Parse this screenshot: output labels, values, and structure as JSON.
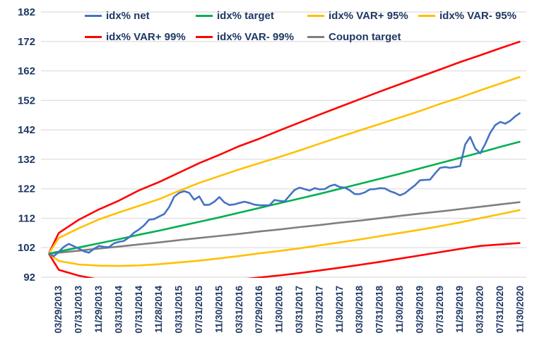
{
  "chart_data": {
    "type": "line",
    "title": "",
    "xlabel": "",
    "ylabel": "",
    "ylim": [
      92,
      182
    ],
    "y_ticks": [
      182,
      172,
      162,
      152,
      142,
      132,
      122,
      112,
      102,
      92
    ],
    "grid": true,
    "legend_position": "top",
    "x_labels": [
      "03/29/2013",
      "07/31/2013",
      "11/29/2013",
      "03/31/2014",
      "07/31/2014",
      "11/28/2014",
      "03/31/2015",
      "07/31/2015",
      "11/30/2015",
      "03/31/2016",
      "07/29/2016",
      "11/30/2016",
      "03/31/2017",
      "07/31/2017",
      "11/30/2017",
      "03/30/2018",
      "07/31/2018",
      "11/30/2018",
      "03/29/2019",
      "07/31/2019",
      "11/29/2019",
      "03/31/2020",
      "07/31/2020",
      "11/30/2020"
    ],
    "series": [
      {
        "name": "idx% net",
        "color": "#4472c4",
        "frequency": "monthly",
        "values": [
          100,
          99.1,
          100.6,
          102.3,
          103.3,
          102.5,
          101.7,
          100.8,
          100.3,
          101.6,
          102.6,
          102.3,
          102.2,
          103.5,
          104,
          104.3,
          105.5,
          107.1,
          108.2,
          109.6,
          111.5,
          111.7,
          112.6,
          113.4,
          115.8,
          119.3,
          120.6,
          121.2,
          120.6,
          118.3,
          119.4,
          116.5,
          116.6,
          117.6,
          119.2,
          117.4,
          116.5,
          116.7,
          117.2,
          117.6,
          117.2,
          116.6,
          116.4,
          116.4,
          116.4,
          118.2,
          117.9,
          117.7,
          119.7,
          121.6,
          122.4,
          121.9,
          121.4,
          122.2,
          121.8,
          121.9,
          122.9,
          123.4,
          122.6,
          122.4,
          121.5,
          120.2,
          120.2,
          120.8,
          121.8,
          121.9,
          122.2,
          122.1,
          121.2,
          120.6,
          119.8,
          120.5,
          121.9,
          123.2,
          124.9,
          125,
          125.1,
          127.2,
          129.1,
          129.4,
          129.1,
          129.4,
          129.7,
          137,
          139.6,
          135.7,
          134,
          137.2,
          141,
          143.6,
          144.7,
          144.1,
          145.1,
          146.6,
          147.8
        ]
      },
      {
        "name": "idx% target",
        "color": "#00b050",
        "frequency": "start + x_labels",
        "values": [
          100,
          100.7,
          102.1,
          103.5,
          104.9,
          106.4,
          107.8,
          109.3,
          110.8,
          112.3,
          113.9,
          115.5,
          117.1,
          118.7,
          120.3,
          122,
          123.7,
          125.4,
          127.1,
          128.9,
          130.7,
          132.5,
          134.3,
          136.2,
          138
        ]
      },
      {
        "name": "idx% VAR+ 95%",
        "color": "#ffc000",
        "frequency": "start + x_labels",
        "values": [
          100,
          105.3,
          108.6,
          111.6,
          114,
          116.2,
          118.5,
          121.3,
          124,
          126.3,
          128.6,
          130.7,
          132.8,
          135,
          137.3,
          139.6,
          141.8,
          144,
          146.2,
          148.4,
          150.8,
          153,
          155.4,
          157.7,
          160
        ]
      },
      {
        "name": "idx% VAR- 95%",
        "color": "#ffc000",
        "frequency": "start + x_labels",
        "values": [
          100,
          97.5,
          96.3,
          95.9,
          95.8,
          96,
          96.4,
          97,
          97.6,
          98.4,
          99.2,
          100.1,
          100.9,
          101.8,
          102.8,
          103.8,
          104.8,
          105.9,
          107,
          108.1,
          109.3,
          110.6,
          112,
          113.4,
          114.8
        ]
      },
      {
        "name": "idx% VAR+ 99%",
        "color": "#ff0000",
        "frequency": "start + x_labels",
        "values": [
          100,
          107,
          111.5,
          115,
          118,
          121.5,
          124.3,
          127.5,
          130.7,
          133.5,
          136.5,
          139,
          141.8,
          144.5,
          147.2,
          149.8,
          152.4,
          155,
          157.5,
          160,
          162.5,
          165,
          167.3,
          169.7,
          172
        ]
      },
      {
        "name": "idx% VAR- 99%",
        "color": "#ff0000",
        "frequency": "start + x_labels",
        "values": [
          100,
          94.5,
          92.5,
          91.2,
          90.4,
          89.9,
          89.7,
          89.8,
          90.1,
          90.6,
          91.2,
          91.9,
          92.6,
          93.4,
          94.3,
          95.2,
          96.2,
          97.2,
          98.3,
          99.4,
          100.5,
          101.6,
          102.6,
          103.1,
          103.6
        ]
      },
      {
        "name": "Coupon target",
        "color": "#7f7f7f",
        "frequency": "start + x_labels",
        "values": [
          100,
          100.3,
          101,
          101.7,
          102.4,
          103.1,
          103.8,
          104.6,
          105.3,
          106,
          106.7,
          107.5,
          108.2,
          109,
          109.7,
          110.5,
          111.2,
          112,
          112.8,
          113.6,
          114.3,
          115.1,
          115.9,
          116.7,
          117.5
        ]
      }
    ]
  },
  "legend": {
    "items": [
      {
        "label": "idx% net",
        "color": "#4472c4"
      },
      {
        "label": "idx% target",
        "color": "#00b050"
      },
      {
        "label": "idx% VAR+ 95%",
        "color": "#ffc000"
      },
      {
        "label": "idx% VAR- 95%",
        "color": "#ffc000"
      },
      {
        "label": "idx% VAR+ 99%",
        "color": "#ff0000"
      },
      {
        "label": "idx% VAR- 99%",
        "color": "#ff0000"
      },
      {
        "label": "Coupon target",
        "color": "#7f7f7f"
      }
    ]
  }
}
